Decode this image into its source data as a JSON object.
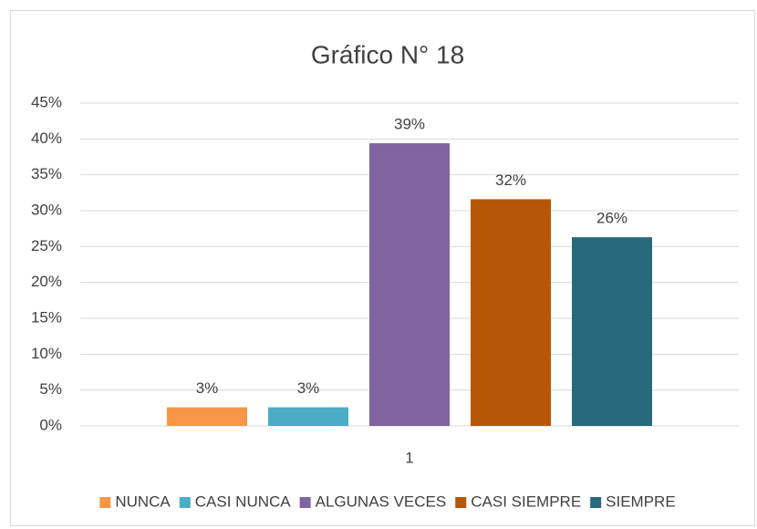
{
  "chart_data": {
    "type": "bar",
    "title": "Gráfico N° 18",
    "categories": [
      "1"
    ],
    "series": [
      {
        "name": "NUNCA",
        "color": "#f79646",
        "values": [
          2.6
        ],
        "value_labels": [
          "3%"
        ]
      },
      {
        "name": "CASI NUNCA",
        "color": "#4bacc6",
        "values": [
          2.6
        ],
        "value_labels": [
          "3%"
        ]
      },
      {
        "name": "ALGUNAS VECES",
        "color": "#8064a2",
        "values": [
          39.4
        ],
        "value_labels": [
          "39%"
        ]
      },
      {
        "name": "CASI SIEMPRE",
        "color": "#b65708",
        "values": [
          31.6
        ],
        "value_labels": [
          "32%"
        ]
      },
      {
        "name": "SIEMPRE",
        "color": "#276a7c",
        "values": [
          26.3
        ],
        "value_labels": [
          "26%"
        ]
      }
    ],
    "ylim": [
      0,
      45
    ],
    "yticks": [
      {
        "value": 0,
        "label": "0%"
      },
      {
        "value": 5,
        "label": "5%"
      },
      {
        "value": 10,
        "label": "10%"
      },
      {
        "value": 15,
        "label": "15%"
      },
      {
        "value": 20,
        "label": "20%"
      },
      {
        "value": 25,
        "label": "25%"
      },
      {
        "value": 30,
        "label": "30%"
      },
      {
        "value": 35,
        "label": "35%"
      },
      {
        "value": 40,
        "label": "40%"
      },
      {
        "value": 45,
        "label": "45%"
      }
    ],
    "grid": true,
    "legend": "bottom"
  }
}
